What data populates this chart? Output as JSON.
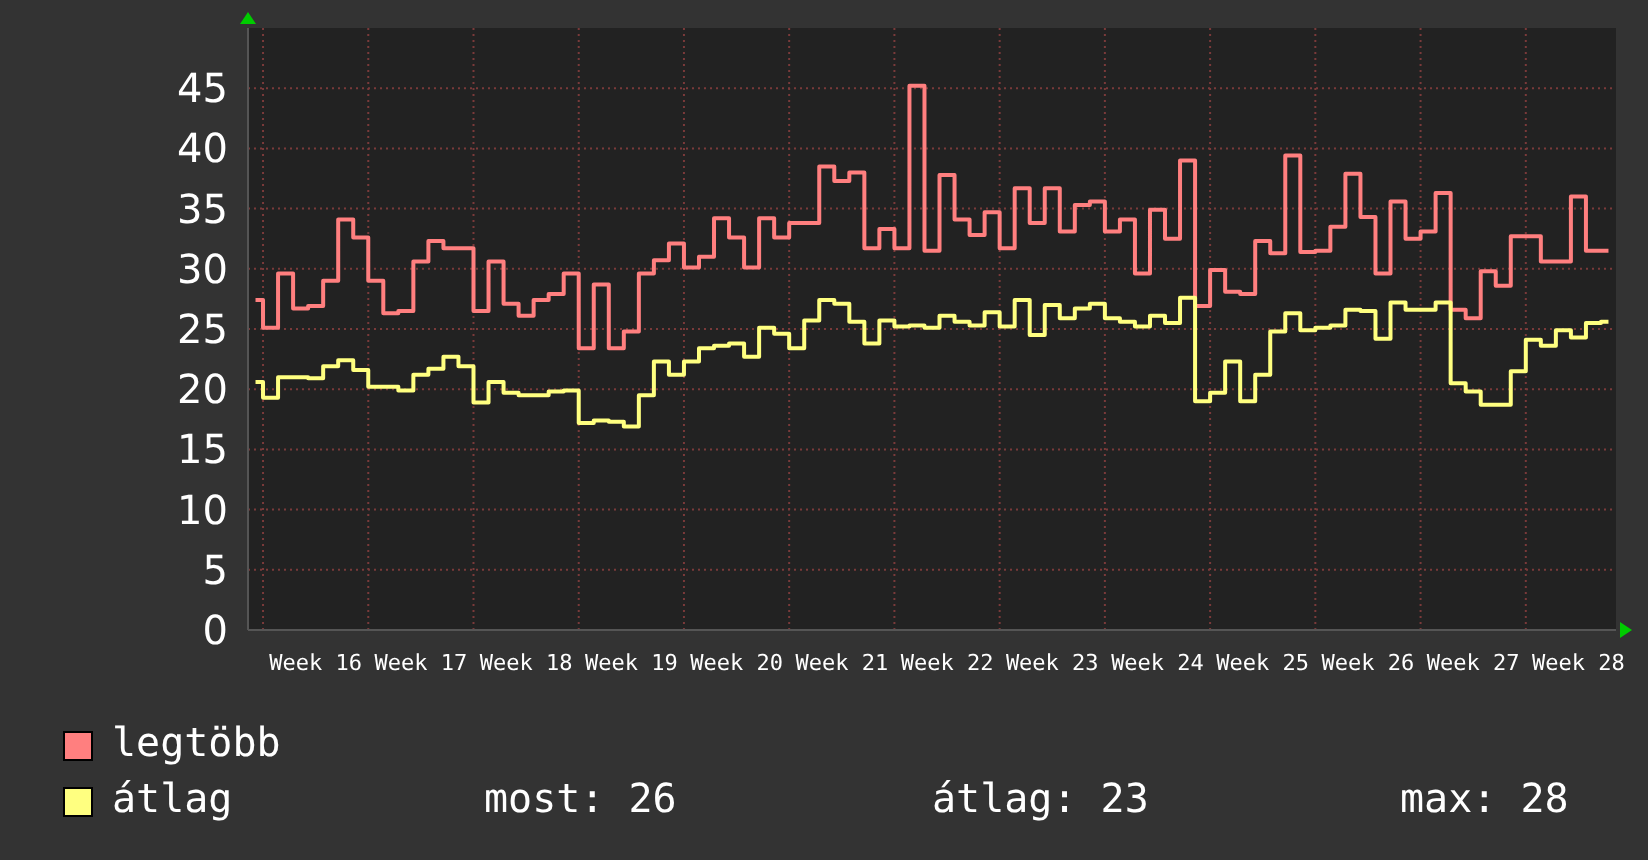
{
  "chart_data": {
    "type": "step",
    "categories": [
      null,
      null,
      null,
      null,
      "Week 16",
      null,
      null,
      null,
      null,
      null,
      null,
      "Week 17",
      null,
      null,
      null,
      null,
      null,
      null,
      "Week 18",
      null,
      null,
      null,
      null,
      null,
      null,
      "Week 19",
      null,
      null,
      null,
      null,
      null,
      null,
      "Week 20",
      null,
      null,
      null,
      null,
      null,
      null,
      "Week 21",
      null,
      null,
      null,
      null,
      null,
      null,
      "Week 22",
      null,
      null,
      null,
      null,
      null,
      null,
      "Week 23",
      null,
      null,
      null,
      null,
      null,
      null,
      "Week 24",
      null,
      null,
      null,
      null,
      null,
      null,
      "Week 25",
      null,
      null,
      null,
      null,
      null,
      null,
      "Week 26",
      null,
      null,
      null,
      null,
      null,
      null,
      "Week 27",
      null,
      null,
      null,
      null,
      null,
      null,
      "Week 28",
      null,
      null
    ],
    "series": [
      {
        "name": "legtöbb",
        "color": "#ff7f7f",
        "values": [
          27.4,
          25.1,
          29.6,
          26.7,
          26.9,
          29.0,
          34.1,
          32.6,
          29.0,
          26.3,
          26.5,
          30.6,
          32.3,
          31.7,
          31.7,
          26.5,
          30.6,
          27.1,
          26.1,
          27.4,
          27.9,
          29.6,
          23.4,
          28.7,
          23.4,
          24.8,
          29.6,
          30.7,
          32.1,
          30.1,
          31.0,
          34.2,
          32.6,
          30.1,
          34.2,
          32.6,
          33.8,
          33.8,
          38.5,
          37.3,
          38.0,
          31.7,
          33.3,
          31.7,
          45.2,
          31.5,
          37.8,
          34.1,
          32.8,
          34.7,
          31.7,
          36.7,
          33.8,
          36.7,
          33.1,
          35.3,
          35.6,
          33.1,
          34.1,
          29.6,
          34.9,
          32.5,
          39.0,
          26.9,
          29.9,
          28.1,
          27.9,
          32.3,
          31.3,
          39.4,
          31.4,
          31.5,
          33.5,
          37.9,
          34.3,
          29.6,
          35.6,
          32.5,
          33.1,
          36.3,
          26.6,
          25.9,
          29.8,
          28.6,
          32.7,
          32.7,
          30.6,
          30.6,
          36.0,
          31.5,
          31.5
        ]
      },
      {
        "name": "átlag",
        "color": "#ffff80",
        "values": [
          20.6,
          19.3,
          21.0,
          21.0,
          20.9,
          21.9,
          22.4,
          21.6,
          20.2,
          20.2,
          19.9,
          21.2,
          21.7,
          22.7,
          21.9,
          18.9,
          20.6,
          19.7,
          19.5,
          19.5,
          19.8,
          19.9,
          17.2,
          17.4,
          17.3,
          16.9,
          19.5,
          22.3,
          21.2,
          22.3,
          23.4,
          23.6,
          23.8,
          22.7,
          25.1,
          24.6,
          23.4,
          25.7,
          27.4,
          27.1,
          25.6,
          23.8,
          25.7,
          25.2,
          25.3,
          25.1,
          26.1,
          25.6,
          25.3,
          26.4,
          25.2,
          27.4,
          24.5,
          27.0,
          25.9,
          26.7,
          27.1,
          25.9,
          25.6,
          25.2,
          26.1,
          25.5,
          27.6,
          19.0,
          19.7,
          22.3,
          19.0,
          21.2,
          24.8,
          26.3,
          24.9,
          25.1,
          25.3,
          26.6,
          26.5,
          24.2,
          27.2,
          26.6,
          26.6,
          27.2,
          20.5,
          19.8,
          18.7,
          18.7,
          21.5,
          24.1,
          23.6,
          24.9,
          24.3,
          25.5,
          25.6
        ]
      }
    ],
    "ylim": [
      0,
      50
    ],
    "yticks": [
      0,
      5,
      10,
      15,
      20,
      25,
      30,
      35,
      40,
      45
    ],
    "grid": true,
    "legend": "bottom",
    "annotations": [
      "most: 26",
      "átlag: 23",
      "max: 28"
    ]
  }
}
